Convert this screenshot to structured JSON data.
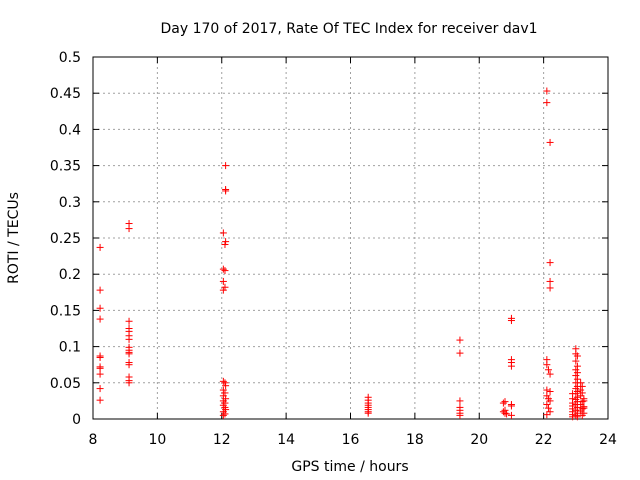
{
  "chart_data": {
    "type": "scatter",
    "title": "Day 170 of 2017, Rate Of TEC Index for receiver dav1",
    "xlabel": "GPS time / hours",
    "ylabel": "ROTI / TECUs",
    "xlim": [
      8,
      24
    ],
    "ylim": [
      0,
      0.5
    ],
    "xticks": [
      8,
      10,
      12,
      14,
      16,
      18,
      20,
      22,
      24
    ],
    "xtick_labels": [
      "8",
      "10",
      "12",
      "14",
      "16",
      "18",
      "20",
      "22",
      "24"
    ],
    "yticks": [
      0,
      0.05,
      0.1,
      0.15,
      0.2,
      0.25,
      0.3,
      0.35,
      0.4,
      0.45,
      0.5
    ],
    "ytick_labels": [
      "0",
      "0.05",
      "0.1",
      "0.15",
      "0.2",
      "0.25",
      "0.3",
      "0.35",
      "0.4",
      "0.45",
      "0.5"
    ],
    "grid": true,
    "marker": "+",
    "color": "#ff0000",
    "series": [
      {
        "name": "ROTI",
        "points": [
          [
            8.22,
            0.237
          ],
          [
            8.22,
            0.178
          ],
          [
            8.22,
            0.153
          ],
          [
            8.22,
            0.138
          ],
          [
            8.22,
            0.087
          ],
          [
            8.22,
            0.085
          ],
          [
            8.22,
            0.072
          ],
          [
            8.22,
            0.07
          ],
          [
            8.22,
            0.062
          ],
          [
            8.22,
            0.042
          ],
          [
            8.22,
            0.026
          ],
          [
            9.12,
            0.27
          ],
          [
            9.12,
            0.263
          ],
          [
            9.12,
            0.135
          ],
          [
            9.12,
            0.125
          ],
          [
            9.12,
            0.121
          ],
          [
            9.12,
            0.115
          ],
          [
            9.12,
            0.11
          ],
          [
            9.12,
            0.099
          ],
          [
            9.12,
            0.095
          ],
          [
            9.12,
            0.092
          ],
          [
            9.12,
            0.09
          ],
          [
            9.12,
            0.078
          ],
          [
            9.12,
            0.075
          ],
          [
            9.12,
            0.058
          ],
          [
            9.12,
            0.053
          ],
          [
            9.12,
            0.05
          ],
          [
            12.12,
            0.35
          ],
          [
            12.12,
            0.317
          ],
          [
            12.12,
            0.315
          ],
          [
            12.05,
            0.257
          ],
          [
            12.12,
            0.245
          ],
          [
            12.1,
            0.241
          ],
          [
            12.05,
            0.207
          ],
          [
            12.1,
            0.205
          ],
          [
            12.05,
            0.19
          ],
          [
            12.1,
            0.182
          ],
          [
            12.05,
            0.178
          ],
          [
            12.05,
            0.052
          ],
          [
            12.1,
            0.05
          ],
          [
            12.12,
            0.046
          ],
          [
            12.05,
            0.04
          ],
          [
            12.1,
            0.036
          ],
          [
            12.05,
            0.032
          ],
          [
            12.12,
            0.028
          ],
          [
            12.05,
            0.025
          ],
          [
            12.1,
            0.022
          ],
          [
            12.05,
            0.019
          ],
          [
            12.1,
            0.016
          ],
          [
            12.12,
            0.013
          ],
          [
            12.05,
            0.01
          ],
          [
            12.1,
            0.007
          ],
          [
            12.05,
            0.005
          ],
          [
            16.55,
            0.03
          ],
          [
            16.55,
            0.026
          ],
          [
            16.55,
            0.022
          ],
          [
            16.55,
            0.019
          ],
          [
            16.55,
            0.016
          ],
          [
            16.55,
            0.013
          ],
          [
            16.55,
            0.01
          ],
          [
            16.55,
            0.008
          ],
          [
            19.4,
            0.109
          ],
          [
            19.4,
            0.091
          ],
          [
            19.4,
            0.025
          ],
          [
            19.4,
            0.016
          ],
          [
            19.4,
            0.012
          ],
          [
            19.4,
            0.008
          ],
          [
            19.4,
            0.005
          ],
          [
            20.8,
            0.024
          ],
          [
            20.75,
            0.022
          ],
          [
            20.8,
            0.012
          ],
          [
            20.75,
            0.01
          ],
          [
            20.8,
            0.008
          ],
          [
            20.85,
            0.007
          ],
          [
            21.0,
            0.139
          ],
          [
            21.0,
            0.136
          ],
          [
            21.0,
            0.082
          ],
          [
            21.0,
            0.078
          ],
          [
            21.0,
            0.073
          ],
          [
            21.0,
            0.02
          ],
          [
            21.0,
            0.018
          ],
          [
            21.0,
            0.005
          ],
          [
            22.1,
            0.453
          ],
          [
            22.1,
            0.437
          ],
          [
            22.2,
            0.382
          ],
          [
            22.2,
            0.216
          ],
          [
            22.2,
            0.19
          ],
          [
            22.2,
            0.181
          ],
          [
            22.1,
            0.082
          ],
          [
            22.1,
            0.075
          ],
          [
            22.15,
            0.068
          ],
          [
            22.2,
            0.062
          ],
          [
            22.1,
            0.04
          ],
          [
            22.2,
            0.038
          ],
          [
            22.1,
            0.032
          ],
          [
            22.15,
            0.028
          ],
          [
            22.2,
            0.025
          ],
          [
            22.1,
            0.02
          ],
          [
            22.15,
            0.015
          ],
          [
            22.2,
            0.01
          ],
          [
            22.1,
            0.006
          ],
          [
            22.9,
            0.035
          ],
          [
            22.9,
            0.028
          ],
          [
            22.9,
            0.022
          ],
          [
            22.9,
            0.018
          ],
          [
            22.9,
            0.014
          ],
          [
            22.9,
            0.01
          ],
          [
            22.9,
            0.006
          ],
          [
            22.9,
            0.003
          ],
          [
            23.0,
            0.097
          ],
          [
            23.0,
            0.09
          ],
          [
            23.05,
            0.087
          ],
          [
            23.0,
            0.08
          ],
          [
            23.05,
            0.073
          ],
          [
            23.0,
            0.068
          ],
          [
            23.05,
            0.064
          ],
          [
            23.0,
            0.06
          ],
          [
            23.05,
            0.055
          ],
          [
            23.0,
            0.05
          ],
          [
            23.05,
            0.045
          ],
          [
            23.0,
            0.042
          ],
          [
            23.05,
            0.038
          ],
          [
            23.0,
            0.035
          ],
          [
            23.05,
            0.03
          ],
          [
            23.0,
            0.027
          ],
          [
            23.05,
            0.024
          ],
          [
            23.0,
            0.02
          ],
          [
            23.05,
            0.016
          ],
          [
            23.0,
            0.012
          ],
          [
            23.05,
            0.008
          ],
          [
            23.0,
            0.005
          ],
          [
            23.05,
            0.003
          ],
          [
            23.15,
            0.05
          ],
          [
            23.2,
            0.045
          ],
          [
            23.15,
            0.04
          ],
          [
            23.2,
            0.036
          ],
          [
            23.15,
            0.032
          ],
          [
            23.25,
            0.028
          ],
          [
            23.2,
            0.024
          ],
          [
            23.15,
            0.02
          ],
          [
            23.25,
            0.017
          ],
          [
            23.2,
            0.014
          ],
          [
            23.15,
            0.011
          ],
          [
            23.25,
            0.008
          ],
          [
            23.2,
            0.005
          ],
          [
            23.25,
            0.025
          ],
          [
            23.25,
            0.015
          ]
        ]
      }
    ]
  }
}
